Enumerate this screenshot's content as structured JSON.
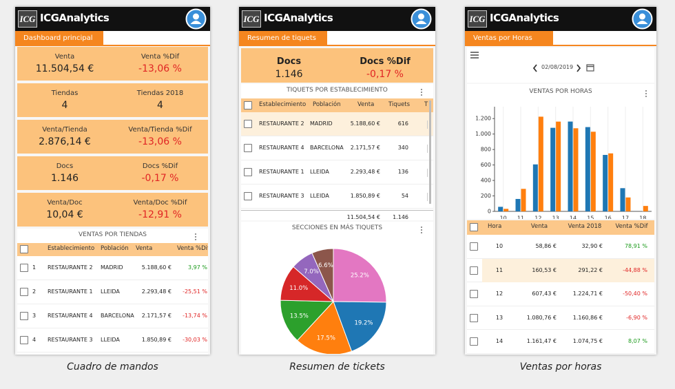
{
  "captions": [
    "Cuadro de mandos",
    "Resumen de tickets",
    "Ventas por horas"
  ],
  "screens": [
    {
      "brand": {
        "logo": "ICG",
        "name": "ICGAnalytics"
      },
      "tab": "Dashboard principal",
      "kpis": [
        {
          "label": "Venta",
          "value": "11.504,54 €",
          "dif_label": "Venta %Dif",
          "dif": "-13,06 %"
        },
        {
          "label": "Tiendas",
          "value": "4",
          "dif_label": "Tiendas 2018",
          "dif": "4"
        },
        {
          "label": "Venta/Tienda",
          "value": "2.876,14 €",
          "dif_label": "Venta/Tienda %Dif",
          "dif": "-13,06 %"
        },
        {
          "label": "Docs",
          "value": "1.146",
          "dif_label": "Docs %Dif",
          "dif": "-0,17 %"
        },
        {
          "label": "Venta/Doc",
          "value": "10,04 €",
          "dif_label": "Venta/Doc %Dif",
          "dif": "-12,91 %"
        }
      ],
      "table": {
        "title": "VENTAS POR TIENDAS",
        "headers": [
          "Establecimiento",
          "Población",
          "Venta",
          "Venta %Dif"
        ],
        "rows": [
          [
            "1",
            "RESTAURANTE 2",
            "MADRID",
            "5.188,60 €",
            "3,97 %"
          ],
          [
            "2",
            "RESTAURANTE 1",
            "LLEIDA",
            "2.293,48 €",
            "-25,51 %"
          ],
          [
            "3",
            "RESTAURANTE 4",
            "BARCELONA",
            "2.171,57 €",
            "-13,74 %"
          ],
          [
            "4",
            "RESTAURANTE 3",
            "LLEIDA",
            "1.850,89 €",
            "-30,03 %"
          ]
        ]
      }
    },
    {
      "brand": {
        "logo": "ICG",
        "name": "ICGAnalytics"
      },
      "tab": "Resumen de tiquets",
      "kpis": [
        {
          "label": "Docs",
          "value": "1.146",
          "dif_label": "Docs %Dif",
          "dif": "-0,17 %"
        }
      ],
      "table": {
        "title": "TIQUETS POR ESTABLECIMIENTO",
        "headers": [
          "Establecimiento",
          "Población",
          "Venta",
          "Tiquets",
          "T"
        ],
        "rows": [
          [
            "RESTAURANTE 2",
            "MADRID",
            "5.188,60 €",
            "616"
          ],
          [
            "RESTAURANTE 4",
            "BARCELONA",
            "2.171,57 €",
            "340"
          ],
          [
            "RESTAURANTE 1",
            "LLEIDA",
            "2.293,48 €",
            "136"
          ],
          [
            "RESTAURANTE 3",
            "LLEIDA",
            "1.850,89 €",
            "54"
          ]
        ],
        "total": [
          "11.504,54 €",
          "1.146"
        ]
      },
      "chart": {
        "type": "pie",
        "title": "SECCIONES EN MÁS TIQUETS",
        "values": [
          25.2,
          19.2,
          17.5,
          13.5,
          11.0,
          7.0,
          6.6
        ],
        "value_labels": [
          "25.2%",
          "19.2%",
          "17.5%",
          "13.5%",
          "11.0%",
          "7.0%",
          "6.6%"
        ],
        "colors": [
          "#e377c2",
          "#1f77b4",
          "#ff7f0e",
          "#2ca02c",
          "#d62728",
          "#9467bd",
          "#8c564b"
        ]
      }
    },
    {
      "brand": {
        "logo": "ICG",
        "name": "ICGAnalytics"
      },
      "tab": "Ventas por Horas",
      "date": "02/08/2019",
      "chart": {
        "type": "bar",
        "title": "VENTAS POR HORAS",
        "categories": [
          "10",
          "11",
          "12",
          "13",
          "14",
          "15",
          "16",
          "17",
          "18"
        ],
        "series": [
          {
            "color": "#1f77b4",
            "values": [
              58.86,
              160.53,
              607.43,
              1080.76,
              1161.47,
              1090,
              730,
              300,
              0
            ]
          },
          {
            "color": "#ff7f0e",
            "values": [
              32.9,
              291.22,
              1224.71,
              1160.86,
              1074.75,
              1030,
              750,
              180,
              70
            ]
          }
        ],
        "ylim": [
          0,
          1300
        ],
        "yticks": [
          0,
          200,
          400,
          600,
          800,
          {
            "value": 1000,
            "label": "1.000"
          },
          {
            "value": 1200,
            "label": "1.200"
          }
        ]
      },
      "table": {
        "headers": [
          "Hora",
          "Venta",
          "Venta 2018",
          "Venta %Dif"
        ],
        "rows": [
          [
            "10",
            "58,86 €",
            "32,90 €",
            "78,91 %"
          ],
          [
            "11",
            "160,53 €",
            "291,22 €",
            "-44,88 %"
          ],
          [
            "12",
            "607,43 €",
            "1.224,71 €",
            "-50,40 %"
          ],
          [
            "13",
            "1.080,76 €",
            "1.160,86 €",
            "-6,90 %"
          ],
          [
            "14",
            "1.161,47 €",
            "1.074,75 €",
            "8,07 %"
          ]
        ]
      }
    }
  ]
}
